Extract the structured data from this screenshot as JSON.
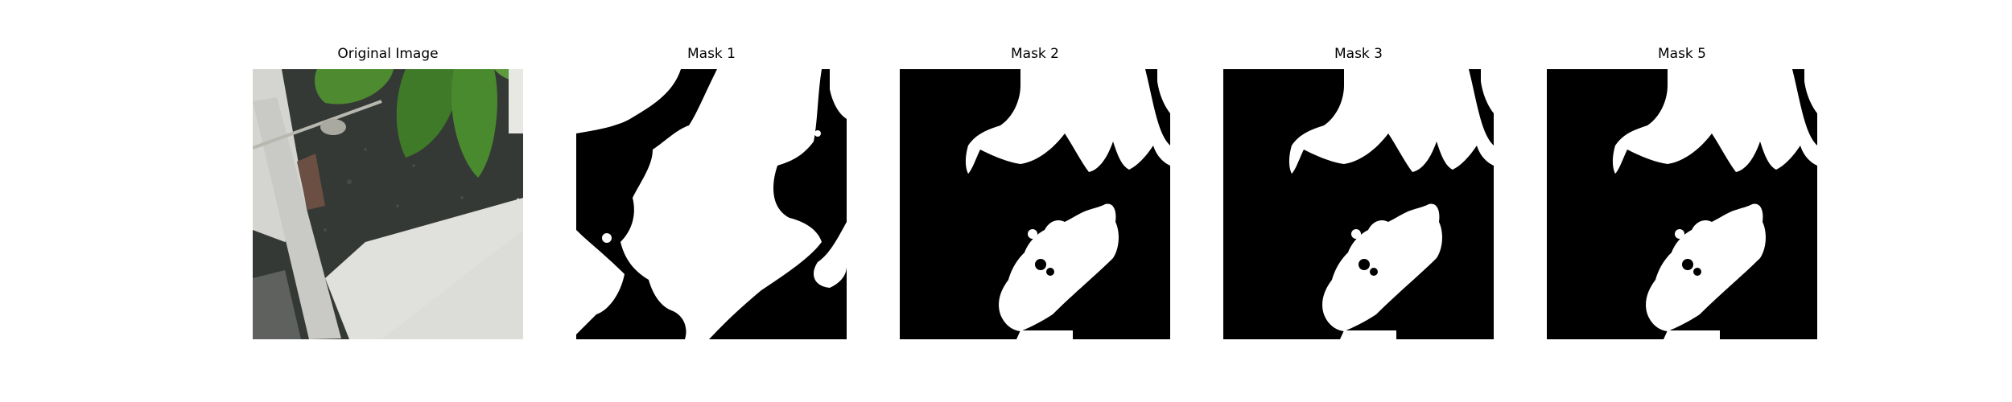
{
  "figure": {
    "panels": [
      {
        "title": "Original Image",
        "kind": "photo"
      },
      {
        "title": "Mask 1",
        "kind": "mask"
      },
      {
        "title": "Mask 2",
        "kind": "mask"
      },
      {
        "title": "Mask 3",
        "kind": "mask"
      },
      {
        "title": "Mask 5",
        "kind": "mask"
      }
    ],
    "colors": {
      "mask_background": "#000000",
      "mask_foreground": "#ffffff",
      "leaf": "#4f8a33",
      "ground": "#3c3f3c",
      "frame": "#d8d8d4"
    }
  }
}
